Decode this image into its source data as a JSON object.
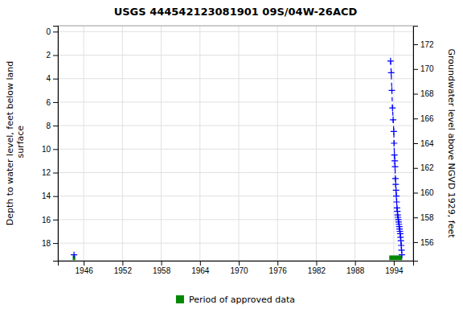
{
  "chart_data": {
    "type": "line",
    "title": "USGS 444542123081901 09S/04W-26ACD",
    "y_label": "Depth to water level, feet below land\n surface",
    "y2_label": "Groundwater level above NGVD 1929, feet",
    "xlim": [
      1942.0,
      1997.0
    ],
    "ylim": [
      19.5,
      -0.5
    ],
    "y2lim": [
      154.5,
      173.5
    ],
    "xticks": [
      1946,
      1952,
      1958,
      1964,
      1970,
      1976,
      1982,
      1988,
      1994
    ],
    "yticks": [
      0,
      2,
      4,
      6,
      8,
      10,
      12,
      14,
      16,
      18
    ],
    "y2ticks": [
      156,
      158,
      160,
      162,
      164,
      166,
      168,
      170,
      172
    ],
    "grid": true,
    "legend": "bottom",
    "series": [
      {
        "color": "#0000ff",
        "marker": "plus",
        "line_style": "dashed",
        "x": [
          1944.5
        ],
        "values": [
          19.0
        ]
      },
      {
        "color": "#0000ff",
        "marker": "plus",
        "line_style": "dashed",
        "x": [
          1993.5,
          1993.6,
          1993.7,
          1993.8,
          1993.9,
          1994.0,
          1994.05,
          1994.1,
          1994.15,
          1994.2,
          1994.25,
          1994.3,
          1994.35,
          1994.4,
          1994.45,
          1994.5,
          1994.55,
          1994.6,
          1994.65,
          1994.7,
          1994.75,
          1994.8,
          1994.85,
          1994.9,
          1994.95,
          1995.0,
          1995.05,
          1995.1,
          1995.15,
          1995.2,
          1995.25
        ],
        "values": [
          2.5,
          3.5,
          5.0,
          6.5,
          7.5,
          8.5,
          9.5,
          10.5,
          11.0,
          11.5,
          12.5,
          13.0,
          13.5,
          14.0,
          14.5,
          15.0,
          15.3,
          15.6,
          15.8,
          16.0,
          16.2,
          16.4,
          16.6,
          16.8,
          17.0,
          17.2,
          17.5,
          17.8,
          18.2,
          18.6,
          19.0
        ]
      }
    ],
    "periods": {
      "name": "Period of approved data",
      "color": "#008800",
      "start": [
        1944.3,
        1993.3
      ],
      "end": [
        1944.7,
        1995.3
      ],
      "y_range": [
        19.05,
        19.45
      ]
    }
  }
}
